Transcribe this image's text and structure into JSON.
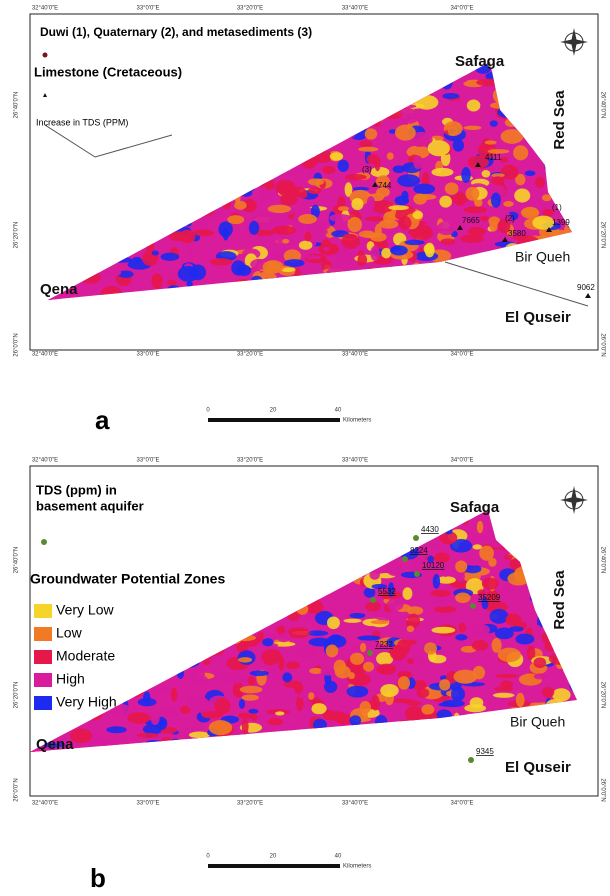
{
  "panel_a": {
    "label": "a",
    "legend": {
      "duwi": "Duwi (1), Quaternary (2), and metasediments (3)",
      "limestone": "Limestone (Cretaceous)",
      "tds": "Increase in TDS (PPM)"
    },
    "places": [
      "Safaga",
      "Red Sea",
      "Qena",
      "Bir Queh",
      "El Quseir"
    ],
    "sites": [
      "(3)",
      "744",
      "4111",
      "7665",
      "(2)",
      "3580",
      "(1)",
      "1399",
      "9062"
    ],
    "lon_ticks": [
      "32°40'0\"E",
      "33°0'0\"E",
      "33°20'0\"E",
      "33°40'0\"E",
      "34°0'0\"E"
    ],
    "lat_ticks": [
      "26°40'0\"N",
      "26°20'0\"N",
      "26°0'0\"N"
    ],
    "scale": [
      "0",
      "20",
      "40",
      "Kilometers"
    ]
  },
  "panel_b": {
    "label": "b",
    "tds_title": [
      "TDS (ppm) in",
      "basement aquifer"
    ],
    "zones_title": "Groundwater Potential Zones",
    "zones": [
      {
        "name": "Very Low",
        "color": "#f7d42a"
      },
      {
        "name": "Low",
        "color": "#f27a24"
      },
      {
        "name": "Moderate",
        "color": "#e6174b"
      },
      {
        "name": "High",
        "color": "#d81c9c"
      },
      {
        "name": "Very High",
        "color": "#1c2bef"
      }
    ],
    "places": [
      "Safaga",
      "Red Sea",
      "Qena",
      "Bir Queh",
      "El Quseir"
    ],
    "sites": [
      "4430",
      "8224",
      "10120",
      "5532",
      "35209",
      "7232",
      "9345"
    ],
    "lon_ticks": [
      "32°40'0\"E",
      "33°0'0\"E",
      "33°20'0\"E",
      "33°40'0\"E",
      "34°0'0\"E"
    ],
    "lat_ticks": [
      "26°40'0\"N",
      "26°20'0\"N",
      "26°0'0\"N"
    ],
    "scale": [
      "0",
      "20",
      "40",
      "Kilometers"
    ]
  }
}
